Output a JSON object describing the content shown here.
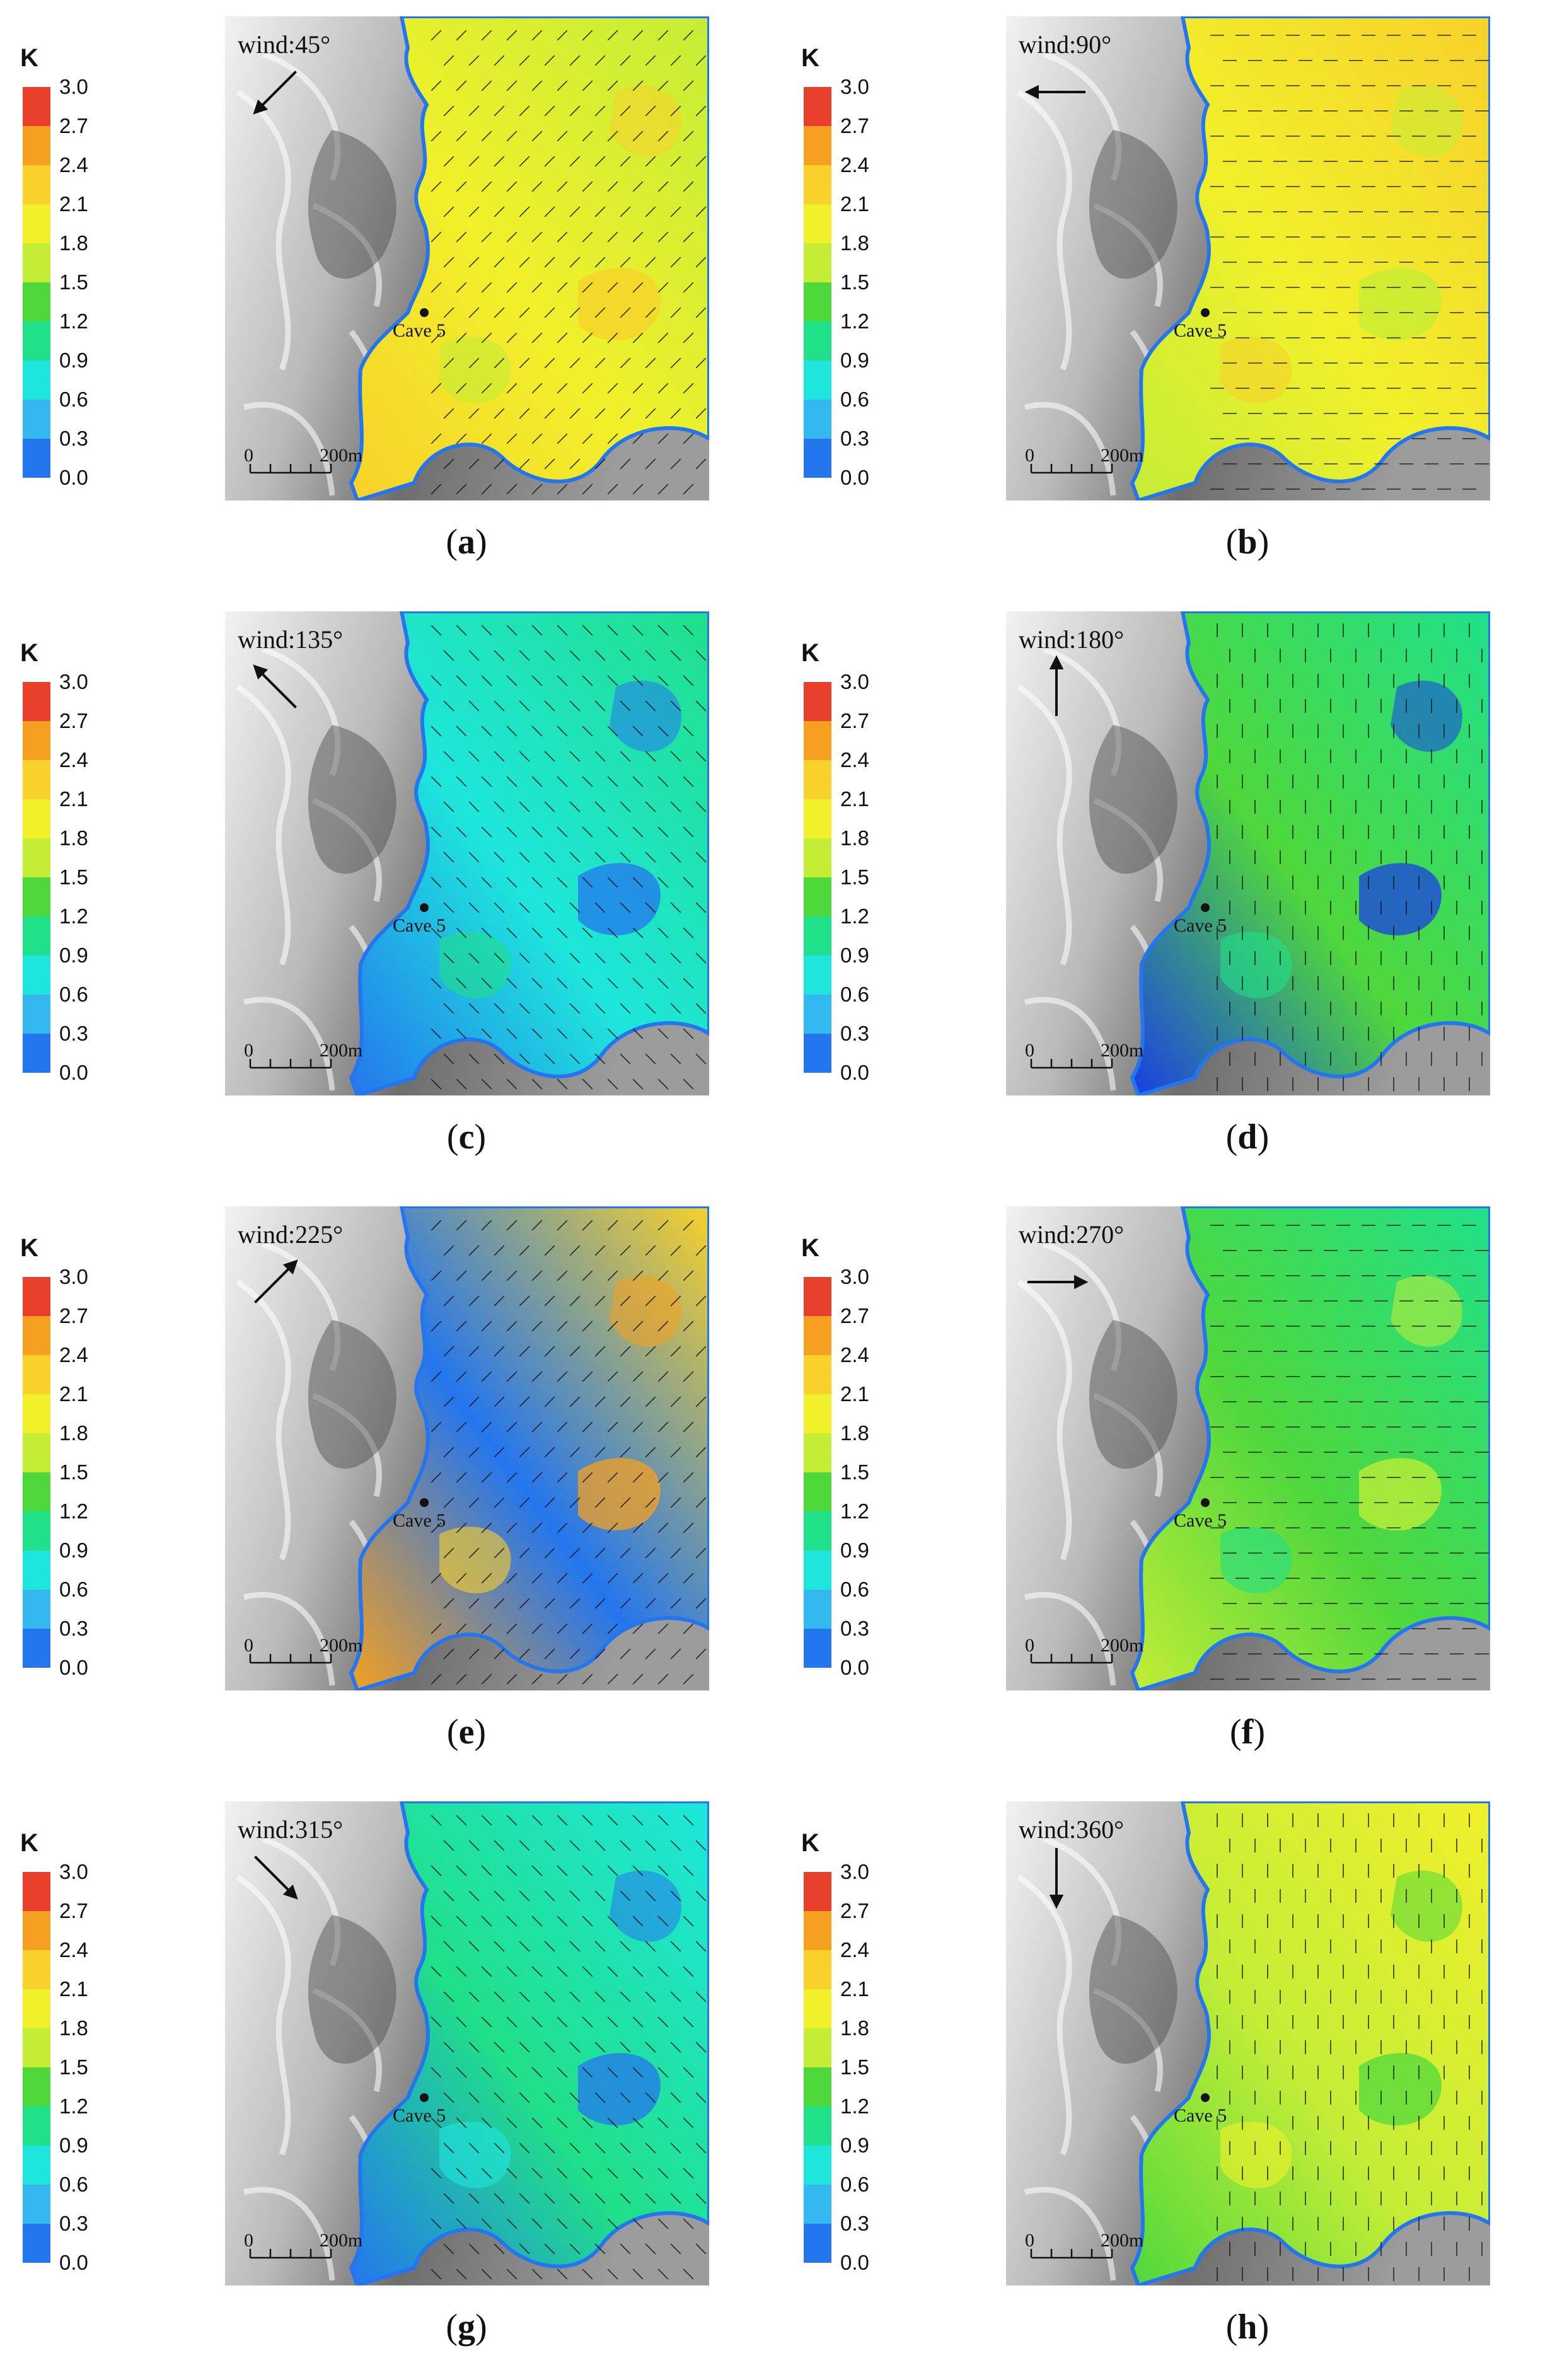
{
  "legend": {
    "title": "K",
    "ticks": [
      "3.0",
      "2.7",
      "2.4",
      "2.1",
      "1.8",
      "1.5",
      "1.2",
      "0.9",
      "0.6",
      "0.3",
      "0.0"
    ],
    "colors": [
      "#e8402a",
      "#f5a020",
      "#f8d12a",
      "#f1f02a",
      "#c4ed36",
      "#4fd83c",
      "#20e089",
      "#1ee6dc",
      "#34b8f0",
      "#2476ee",
      "#1a3ee6"
    ]
  },
  "scale_bar": {
    "start": "0",
    "end": "200m"
  },
  "cave_label": "Cave 5",
  "panels": [
    {
      "label": "a",
      "wind": "wind:45°",
      "wind_deg": 45
    },
    {
      "label": "b",
      "wind": "wind:90°",
      "wind_deg": 90
    },
    {
      "label": "c",
      "wind": "wind:135°",
      "wind_deg": 135
    },
    {
      "label": "d",
      "wind": "wind:180°",
      "wind_deg": 180
    },
    {
      "label": "e",
      "wind": "wind:225°",
      "wind_deg": 225
    },
    {
      "label": "f",
      "wind": "wind:270°",
      "wind_deg": 270
    },
    {
      "label": "g",
      "wind": "wind:315°",
      "wind_deg": 315
    },
    {
      "label": "h",
      "wind": "wind:360°",
      "wind_deg": 360
    }
  ],
  "field_colors": {
    "a": [
      "#f1f02a",
      "#c4ed36",
      "#f8d12a"
    ],
    "b": [
      "#f1f02a",
      "#f8d12a",
      "#c4ed36"
    ],
    "c": [
      "#1ee6dc",
      "#20e089",
      "#2476ee"
    ],
    "d": [
      "#4fd83c",
      "#20e089",
      "#1a3ee6"
    ],
    "e": [
      "#2476ee",
      "#f8d12a",
      "#f5a020"
    ],
    "f": [
      "#4fd83c",
      "#20e089",
      "#c4ed36"
    ],
    "g": [
      "#20e089",
      "#1ee6dc",
      "#2476ee"
    ],
    "h": [
      "#c4ed36",
      "#f1f02a",
      "#4fd83c"
    ]
  }
}
